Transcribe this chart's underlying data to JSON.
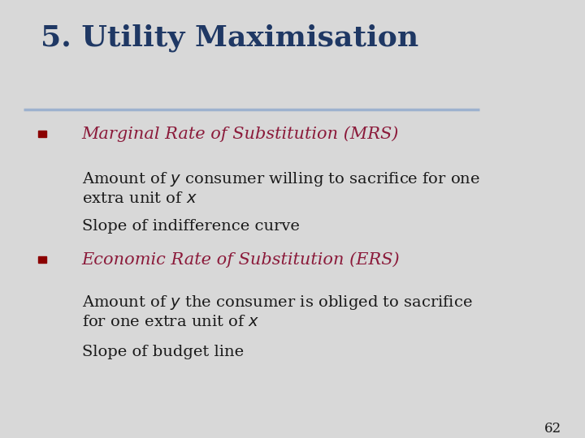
{
  "title": "5. Utility Maximisation",
  "title_color": "#1F3864",
  "title_fontsize": 26,
  "divider_color": "#9DB2CE",
  "bullet_color": "#8B0000",
  "bullet1_heading": "Marginal Rate of Substitution (MRS)",
  "bullet1_sub1_line1": "Amount of $y$ consumer willing to sacrifice for one",
  "bullet1_sub1_line2": "extra unit of $x$",
  "bullet1_sub2": "Slope of indifference curve",
  "bullet2_heading": "Economic Rate of Substitution (ERS)",
  "bullet2_sub1_line1": "Amount of $y$ the consumer is obliged to sacrifice",
  "bullet2_sub1_line2": "for one extra unit of $x$",
  "bullet2_sub2": "Slope of budget line",
  "sub_fontsize": 14,
  "heading_fontsize": 15,
  "page_number": "62",
  "bg_color": "#D8D8D8",
  "text_color": "#1a1a1a",
  "heading_italic_color": "#8B1A3A"
}
